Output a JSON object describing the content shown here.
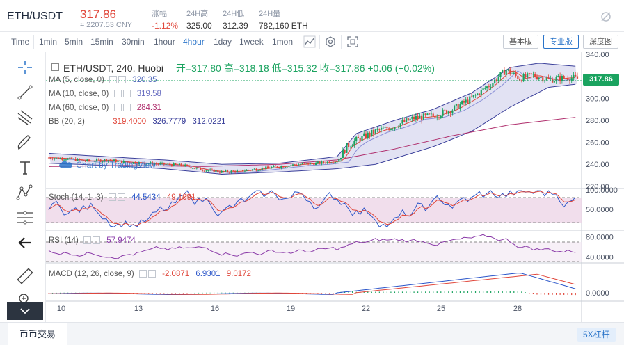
{
  "ticker": {
    "pair": "ETH/USDT",
    "price": "317.86",
    "price_cny": "≈ 2207.53 CNY",
    "stats": [
      {
        "label": "涨幅",
        "value": "-1.12%"
      },
      {
        "label": "24H高",
        "value": "325.00"
      },
      {
        "label": "24H低",
        "value": "312.39"
      },
      {
        "label": "24H量",
        "value": "782,160 ETH"
      }
    ]
  },
  "toolbar": {
    "time_label": "Time",
    "intervals": [
      "1min",
      "5min",
      "15min",
      "30min",
      "1hour",
      "4hour",
      "1day",
      "1week",
      "1mon"
    ],
    "active_interval": "4hour",
    "versions": [
      "基本版",
      "专业版",
      "深度图"
    ],
    "active_version": "专业版"
  },
  "chart_header": {
    "symbol": "ETH/USDT, 240, Huobi",
    "ohlc": "开=317.80  高=318.18  低=315.32  收=317.86  +0.06 (+0.02%)",
    "watermark": "Chart by TradingView",
    "last_price": "317.86"
  },
  "indicators": {
    "ma5": {
      "label": "MA (5, close, 0)",
      "value": "320.35",
      "color": "#4b63b8"
    },
    "ma10": {
      "label": "MA (10, close, 0)",
      "value": "319.58",
      "color": "#8a8fd6"
    },
    "ma60": {
      "label": "MA (60, close, 0)",
      "value": "284.31",
      "color": "#b0306e"
    },
    "bb": {
      "label": "BB (20, 2)",
      "basis": "319.4000",
      "upper": "326.7779",
      "lower": "312.0221"
    },
    "stoch": {
      "label": "Stoch (14, 1, 3)",
      "k": "44.5434",
      "d": "49.1091"
    },
    "rsi": {
      "label": "RSI (14)",
      "value": "57.9474"
    },
    "macd": {
      "label": "MACD (12, 26, close, 9)",
      "hist": "-2.0871",
      "macd": "6.9301",
      "signal": "9.0172"
    }
  },
  "colors": {
    "up": "#1aa35f",
    "down": "#e0463a",
    "accent": "#2a74c9",
    "bb_fill": "#d8d8ef",
    "osc_fill": "#ecd3e6"
  },
  "chart_data": {
    "type": "candlestick",
    "x_tick_labels": [
      "10",
      "13",
      "16",
      "19",
      "22",
      "25",
      "28"
    ],
    "price_axis": {
      "ticks": [
        340,
        320,
        300,
        280,
        260,
        240,
        220
      ],
      "ylim": [
        218,
        342
      ],
      "labels": [
        "340.00",
        "320.00",
        "300.00",
        "280.00",
        "260.00",
        "240.00",
        "220.00"
      ]
    },
    "stoch_axis": {
      "labels": [
        "100.0000",
        "50.0000"
      ],
      "ylim": [
        0,
        100
      ]
    },
    "rsi_axis": {
      "labels": [
        "80.0000",
        "40.0000"
      ],
      "ylim": [
        30,
        90
      ]
    },
    "macd_axis": {
      "labels": [
        "0.0000"
      ]
    },
    "close_path": [
      [
        0,
        246
      ],
      [
        10,
        245
      ],
      [
        20,
        243
      ],
      [
        30,
        244
      ],
      [
        40,
        242
      ],
      [
        50,
        241
      ],
      [
        60,
        240
      ],
      [
        70,
        239
      ],
      [
        80,
        235
      ],
      [
        90,
        233
      ],
      [
        100,
        234
      ],
      [
        110,
        236
      ],
      [
        120,
        238
      ],
      [
        130,
        240
      ],
      [
        140,
        241
      ],
      [
        150,
        243
      ],
      [
        155,
        256
      ],
      [
        160,
        262
      ],
      [
        170,
        270
      ],
      [
        180,
        275
      ],
      [
        190,
        282
      ],
      [
        200,
        284
      ],
      [
        210,
        290
      ],
      [
        220,
        300
      ],
      [
        230,
        313
      ],
      [
        238,
        326
      ],
      [
        245,
        318
      ],
      [
        252,
        321
      ],
      [
        260,
        317
      ],
      [
        270,
        319
      ],
      [
        275,
        318
      ]
    ],
    "ma60_path": [
      [
        0,
        238
      ],
      [
        40,
        239
      ],
      [
        80,
        238
      ],
      [
        120,
        240
      ],
      [
        150,
        244
      ],
      [
        180,
        254
      ],
      [
        210,
        266
      ],
      [
        240,
        276
      ],
      [
        275,
        283
      ]
    ],
    "bb_upper_path": [
      [
        0,
        250
      ],
      [
        30,
        247
      ],
      [
        60,
        244
      ],
      [
        90,
        240
      ],
      [
        120,
        241
      ],
      [
        150,
        247
      ],
      [
        160,
        268
      ],
      [
        180,
        280
      ],
      [
        200,
        290
      ],
      [
        220,
        305
      ],
      [
        240,
        328
      ],
      [
        255,
        332
      ],
      [
        275,
        329
      ]
    ],
    "bb_lower_path": [
      [
        0,
        241
      ],
      [
        30,
        239
      ],
      [
        60,
        236
      ],
      [
        90,
        231
      ],
      [
        120,
        233
      ],
      [
        150,
        236
      ],
      [
        170,
        240
      ],
      [
        200,
        256
      ],
      [
        220,
        270
      ],
      [
        240,
        292
      ],
      [
        260,
        310
      ],
      [
        275,
        313
      ]
    ]
  }
}
